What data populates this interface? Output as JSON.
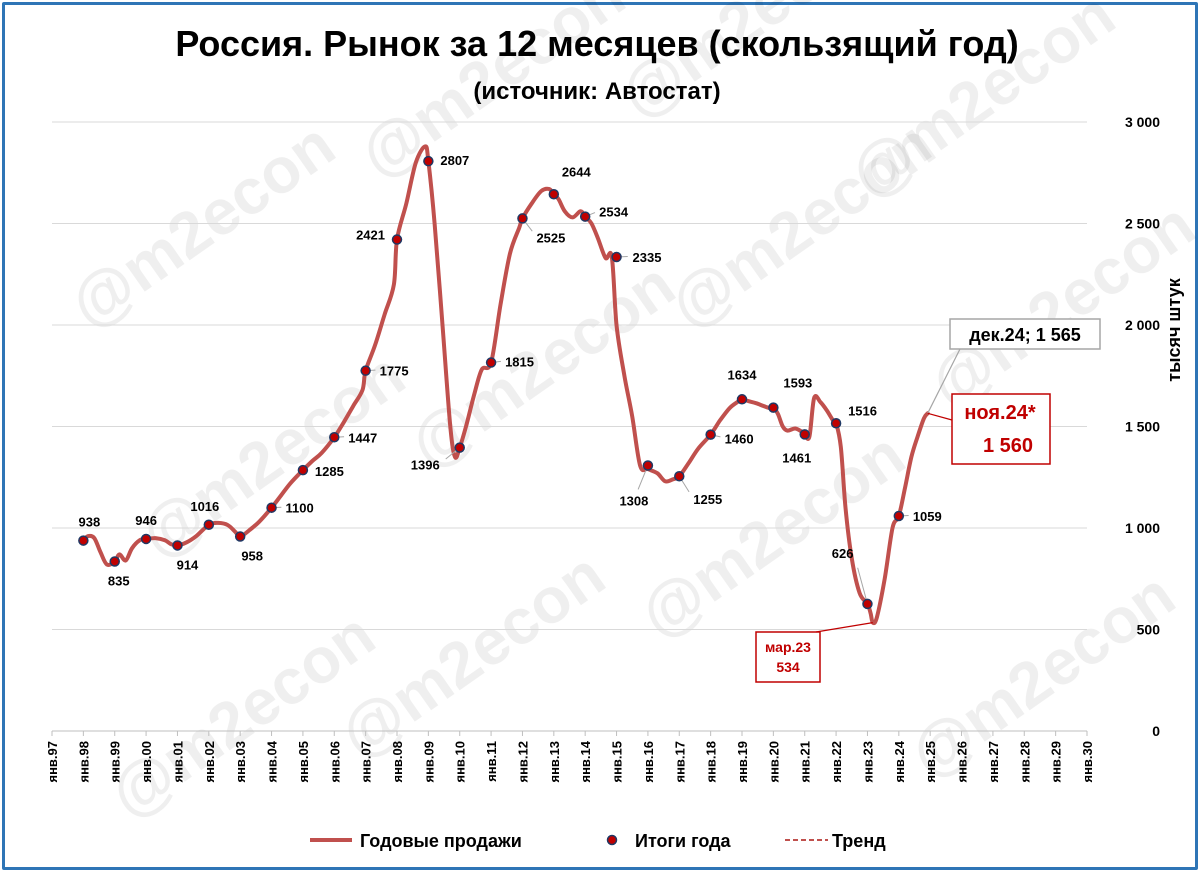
{
  "chart_data": {
    "type": "line",
    "title": "Россия. Рынок за 12 месяцев (скользящий год)",
    "subtitle": "(источник: Автостат)",
    "ylabel": "тысяч штук",
    "ylim": [
      0,
      3000
    ],
    "y_ticks": [
      "0",
      "500",
      "1 000",
      "1 500",
      "2 000",
      "2 500",
      "3 000"
    ],
    "y_tick_values": [
      0,
      500,
      1000,
      1500,
      2000,
      2500,
      3000
    ],
    "x_ticks": [
      "янв.97",
      "янв.98",
      "янв.99",
      "янв.00",
      "янв.01",
      "янв.02",
      "янв.03",
      "янв.04",
      "янв.05",
      "янв.06",
      "янв.07",
      "янв.08",
      "янв.09",
      "янв.10",
      "янв.11",
      "янв.12",
      "янв.13",
      "янв.14",
      "янв.15",
      "янв.16",
      "янв.17",
      "янв.18",
      "янв.19",
      "янв.20",
      "янв.21",
      "янв.22",
      "янв.23",
      "янв.24",
      "янв.25",
      "янв.26",
      "янв.27",
      "янв.28",
      "янв.29",
      "янв.30"
    ],
    "grid": true,
    "legend_position": "bottom",
    "series": [
      {
        "name": "Годовые продажи",
        "color": "#c0504d",
        "x": [
          1998.0,
          1998.15,
          1998.35,
          1998.55,
          1998.75,
          1999.0,
          1999.15,
          1999.35,
          1999.55,
          1999.8,
          2000.0,
          2000.3,
          2000.6,
          2000.8,
          2001.0,
          2001.3,
          2001.6,
          2002.0,
          2002.3,
          2002.6,
          2002.85,
          2003.0,
          2003.3,
          2003.6,
          2004.0,
          2004.3,
          2004.6,
          2005.0,
          2005.3,
          2005.6,
          2006.0,
          2006.3,
          2006.6,
          2006.9,
          2007.0,
          2007.3,
          2007.6,
          2007.9,
          2008.0,
          2008.3,
          2008.6,
          2008.9,
          2009.0,
          2009.2,
          2009.45,
          2009.7,
          2009.85,
          2010.0,
          2010.2,
          2010.45,
          2010.7,
          2011.0,
          2011.3,
          2011.6,
          2011.9,
          2012.0,
          2012.3,
          2012.6,
          2012.85,
          2013.0,
          2013.15,
          2013.35,
          2013.6,
          2013.85,
          2014.0,
          2014.2,
          2014.4,
          2014.65,
          2014.85,
          2015.0,
          2015.25,
          2015.5,
          2015.75,
          2016.0,
          2016.3,
          2016.55,
          2016.8,
          2017.0,
          2017.3,
          2017.6,
          2018.0,
          2018.3,
          2018.6,
          2018.85,
          2019.0,
          2019.2,
          2019.45,
          2019.7,
          2019.9,
          2020.0,
          2020.15,
          2020.3,
          2020.45,
          2020.7,
          2020.95,
          2021.0,
          2021.15,
          2021.3,
          2021.5,
          2021.7,
          2021.9,
          2022.0,
          2022.15,
          2022.3,
          2022.5,
          2022.75,
          2023.0,
          2023.1,
          2023.17,
          2023.3,
          2023.55,
          2023.8,
          2024.0,
          2024.2,
          2024.4,
          2024.6,
          2024.8,
          2024.92
        ],
        "values": [
          938,
          960,
          950,
          880,
          820,
          835,
          870,
          840,
          900,
          940,
          946,
          950,
          940,
          920,
          914,
          930,
          960,
          1016,
          1025,
          1015,
          980,
          958,
          990,
          1030,
          1100,
          1160,
          1220,
          1285,
          1330,
          1370,
          1447,
          1520,
          1600,
          1680,
          1775,
          1900,
          2050,
          2200,
          2421,
          2600,
          2800,
          2880,
          2807,
          2500,
          2000,
          1500,
          1350,
          1396,
          1500,
          1650,
          1780,
          1815,
          2100,
          2350,
          2480,
          2525,
          2600,
          2660,
          2670,
          2644,
          2620,
          2560,
          2530,
          2560,
          2534,
          2500,
          2430,
          2330,
          2335,
          2000,
          1750,
          1550,
          1308,
          1290,
          1270,
          1230,
          1240,
          1255,
          1320,
          1390,
          1460,
          1530,
          1590,
          1620,
          1634,
          1625,
          1615,
          1600,
          1590,
          1593,
          1560,
          1500,
          1480,
          1490,
          1470,
          1461,
          1450,
          1640,
          1620,
          1580,
          1530,
          1516,
          1400,
          1100,
          850,
          680,
          626,
          580,
          534,
          560,
          750,
          1000,
          1059,
          1200,
          1350,
          1450,
          1540,
          1565
        ]
      },
      {
        "name": "Итоги года",
        "color": "#c00000",
        "x": [
          1998,
          1999,
          2000,
          2001,
          2002,
          2003,
          2004,
          2005,
          2006,
          2007,
          2008,
          2009,
          2010,
          2011,
          2012,
          2013,
          2014,
          2015,
          2016,
          2017,
          2018,
          2019,
          2020,
          2021,
          2022,
          2023,
          2024
        ],
        "values": [
          938,
          835,
          946,
          914,
          1016,
          958,
          1100,
          1285,
          1447,
          1775,
          2421,
          2807,
          1396,
          1815,
          2525,
          2644,
          2534,
          2335,
          1308,
          1255,
          1460,
          1634,
          1593,
          1461,
          1516,
          626,
          1059
        ]
      },
      {
        "name": "Тренд",
        "color": "#c0504d"
      }
    ],
    "annotations": {
      "last_value": "дек.24; 1 565",
      "nov_label": "ноя.24*",
      "nov_value": "1 560",
      "min_label": "мар.23",
      "min_value": "534"
    }
  },
  "watermark": "@m2econ"
}
